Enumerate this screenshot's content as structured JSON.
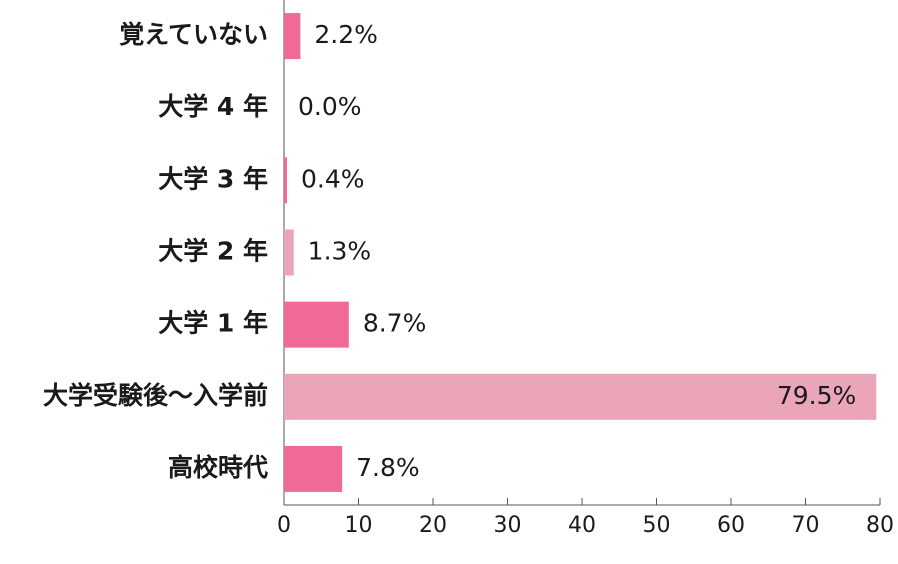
{
  "chart_data": {
    "type": "bar",
    "orientation": "horizontal",
    "categories": [
      "覚えていない",
      "大学 4 年",
      "大学 3 年",
      "大学 2 年",
      "大学 1 年",
      "大学受験後〜入学前",
      "高校時代"
    ],
    "values": [
      2.2,
      0.0,
      0.4,
      1.3,
      8.7,
      79.5,
      7.8
    ],
    "value_labels": [
      "2.2%",
      "0.0%",
      "0.4%",
      "1.3%",
      "8.7%",
      "79.5%",
      "7.8%"
    ],
    "colors": [
      "#f06a98",
      "#f06a98",
      "#f06a98",
      "#eba5b8",
      "#f06a98",
      "#eba5b8",
      "#f06a98"
    ],
    "xlim": [
      0,
      80
    ],
    "xticks": [
      0,
      10,
      20,
      30,
      40,
      50,
      60,
      70,
      80
    ]
  }
}
